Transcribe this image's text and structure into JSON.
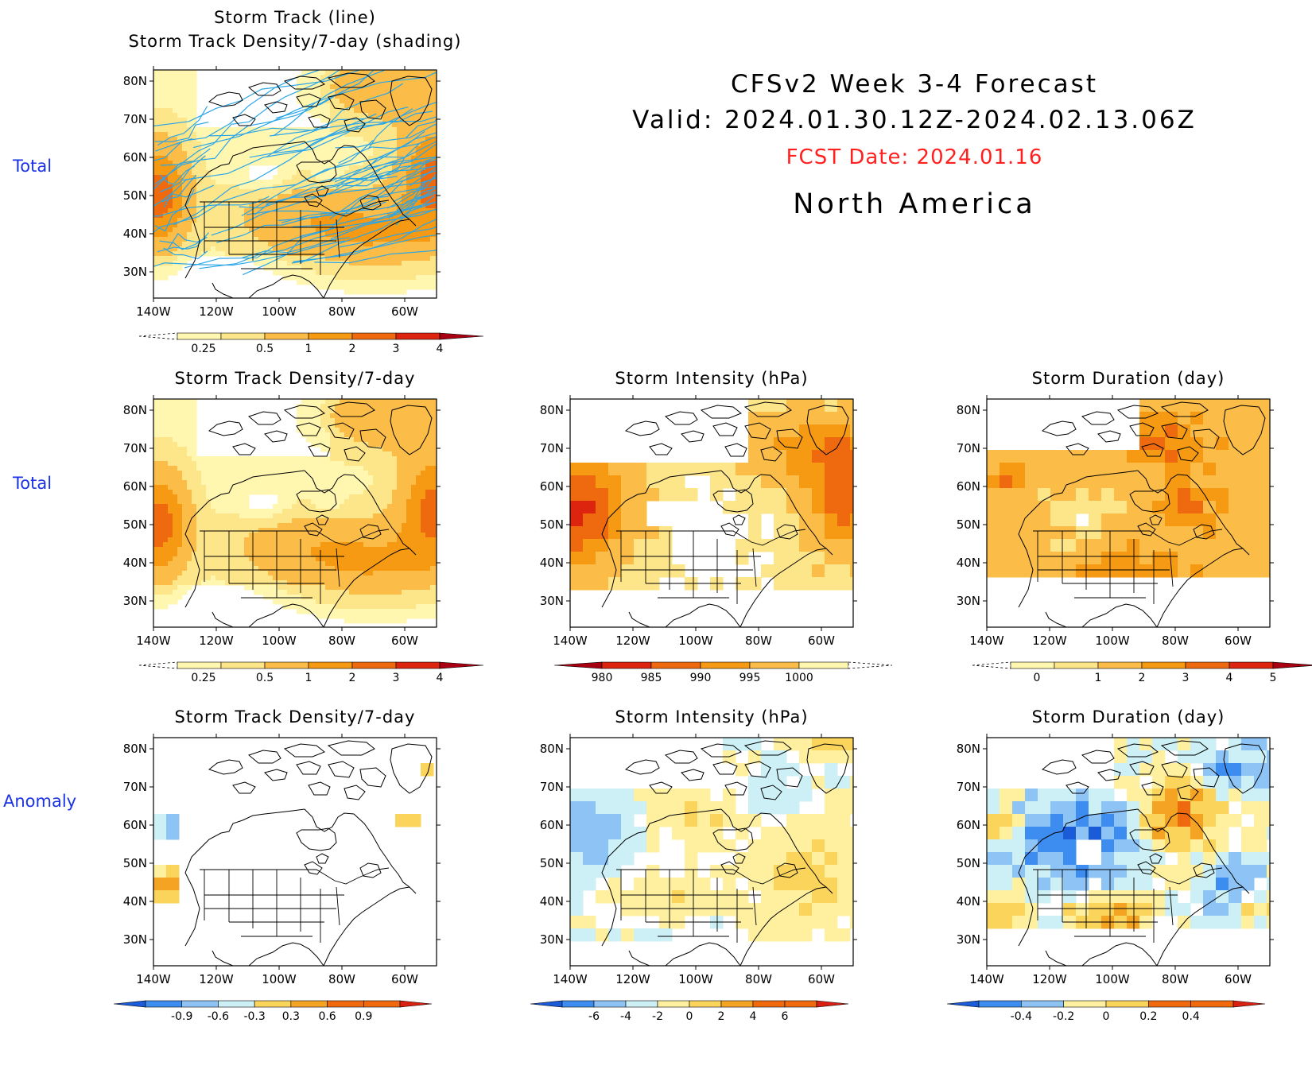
{
  "header": {
    "title": "CFSv2 Week 3-4 Forecast",
    "valid": "Valid: 2024.01.30.12Z-2024.02.13.06Z",
    "fcst_date": "FCST Date: 2024.01.16",
    "region": "North America"
  },
  "row_labels": [
    "Total",
    "Total",
    "Anomaly"
  ],
  "colors": {
    "density": [
      "#fff6b0",
      "#fde58a",
      "#fbbd48",
      "#f59a12",
      "#ef6a0e",
      "#dc240e",
      "#a80012"
    ],
    "anomaly": [
      "#1a5cd8",
      "#3d8cf0",
      "#8ec4f5",
      "#ccf0f5",
      "#ffffff",
      "#fff0a0",
      "#fbd45c",
      "#f5a323",
      "#ef6a0e",
      "#d92012"
    ],
    "track_line": "#2aa6e8",
    "row_label": "#1a33e6",
    "fcst_red": "#ff2020"
  },
  "map_axes": {
    "lon_labels": [
      "140W",
      "120W",
      "100W",
      "80W",
      "60W"
    ],
    "lat_labels": [
      "80N",
      "70N",
      "60N",
      "50N",
      "40N",
      "30N"
    ]
  },
  "panels": [
    {
      "id": "p1",
      "title_lines": [
        "Storm Track (line)",
        "Storm Track Density/7-day (shading)"
      ],
      "field": "density",
      "has_tracks": true,
      "colorbar": {
        "kind": "seq",
        "labels": [
          "0.25",
          "0.5",
          "1",
          "2",
          "3",
          "4"
        ]
      }
    },
    {
      "id": "p2",
      "title_lines": [
        "Storm Track Density/7-day"
      ],
      "field": "density",
      "has_tracks": false,
      "colorbar": {
        "kind": "seq",
        "labels": [
          "0.25",
          "0.5",
          "1",
          "2",
          "3",
          "4"
        ]
      }
    },
    {
      "id": "p3",
      "title_lines": [
        "Storm Intensity (hPa)"
      ],
      "field": "intensity",
      "has_tracks": false,
      "colorbar": {
        "kind": "rev",
        "labels": [
          "980",
          "985",
          "990",
          "995",
          "1000"
        ]
      }
    },
    {
      "id": "p4",
      "title_lines": [
        "Storm Duration (day)"
      ],
      "field": "duration",
      "has_tracks": false,
      "colorbar": {
        "kind": "seq",
        "labels": [
          "0",
          "1",
          "2",
          "3",
          "4",
          "5"
        ]
      }
    },
    {
      "id": "p5",
      "title_lines": [
        "Storm Track Density/7-day"
      ],
      "field": "density_anom",
      "has_tracks": false,
      "colorbar": {
        "kind": "div",
        "labels": [
          "-0.9",
          "-0.6",
          "-0.3",
          "0.3",
          "0.6",
          "0.9"
        ]
      }
    },
    {
      "id": "p6",
      "title_lines": [
        "Storm Intensity (hPa)"
      ],
      "field": "intensity_anom",
      "has_tracks": false,
      "colorbar": {
        "kind": "div",
        "labels": [
          "-6",
          "-4",
          "-2",
          "0",
          "2",
          "4",
          "6"
        ]
      }
    },
    {
      "id": "p7",
      "title_lines": [
        "Storm Duration (day)"
      ],
      "field": "duration_anom",
      "has_tracks": false,
      "colorbar": {
        "kind": "div",
        "labels": [
          "-0.4",
          "-0.2",
          "0",
          "0.2",
          "0.4"
        ]
      }
    }
  ]
}
